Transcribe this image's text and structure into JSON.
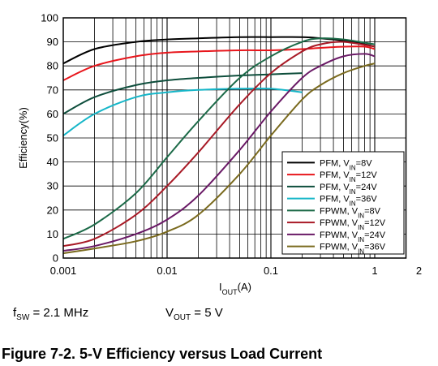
{
  "chart_data": {
    "type": "line",
    "title": "",
    "xlabel": "I_OUT(A)",
    "ylabel": "Efficiency(%)",
    "x_scale": "log",
    "xlim": [
      0.001,
      2
    ],
    "ylim": [
      0,
      100
    ],
    "grid": true,
    "legend_position": "bottom-right",
    "y_ticks": [
      "0",
      "10",
      "20",
      "30",
      "40",
      "50",
      "60",
      "70",
      "80",
      "90",
      "100"
    ],
    "x_ticks": [
      {
        "value": 0.001,
        "label": "0.001"
      },
      {
        "value": 0.01,
        "label": "0.01"
      },
      {
        "value": 0.1,
        "label": "0.1"
      },
      {
        "value": 1,
        "label": "1"
      },
      {
        "value": 2,
        "label": "2"
      }
    ],
    "series": [
      {
        "name": "PFM, V_IN=8V",
        "mode": "PFM",
        "vin": "8V",
        "color": "#000000",
        "x": [
          0.001,
          0.002,
          0.005,
          0.01,
          0.02,
          0.05,
          0.1,
          0.2,
          0.3,
          0.5,
          0.8,
          1
        ],
        "y": [
          81,
          87,
          90,
          91,
          91.5,
          92,
          92,
          92,
          91.5,
          90.5,
          89,
          88
        ]
      },
      {
        "name": "PFM, V_IN=12V",
        "mode": "PFM",
        "vin": "12V",
        "color": "#e8161c",
        "x": [
          0.001,
          0.002,
          0.005,
          0.01,
          0.02,
          0.05,
          0.1,
          0.2,
          0.3,
          0.5,
          0.8,
          1
        ],
        "y": [
          74,
          80,
          84,
          85.5,
          86,
          86.5,
          86.5,
          87,
          87.5,
          88,
          88,
          87
        ]
      },
      {
        "name": "PFM, V_IN=24V",
        "mode": "PFM",
        "vin": "24V",
        "color": "#0e4e3c",
        "x": [
          0.001,
          0.002,
          0.005,
          0.01,
          0.02,
          0.05,
          0.1,
          0.2
        ],
        "y": [
          60,
          67,
          72,
          74,
          75,
          76,
          76.5,
          77
        ]
      },
      {
        "name": "PFM, V_IN=36V",
        "mode": "PFM",
        "vin": "36V",
        "color": "#16b6c8",
        "x": [
          0.001,
          0.002,
          0.005,
          0.01,
          0.02,
          0.05,
          0.1,
          0.2
        ],
        "y": [
          51,
          60,
          67,
          69,
          70,
          70.5,
          70.5,
          69
        ]
      },
      {
        "name": "FPWM, V_IN=8V",
        "mode": "FPWM",
        "vin": "8V",
        "color": "#1c6a48",
        "x": [
          0.001,
          0.002,
          0.005,
          0.01,
          0.02,
          0.05,
          0.1,
          0.2,
          0.3,
          0.5,
          1
        ],
        "y": [
          8,
          14,
          27,
          42,
          57,
          75,
          84,
          90,
          91.5,
          91,
          89
        ]
      },
      {
        "name": "FPWM, V_IN=12V",
        "mode": "FPWM",
        "vin": "12V",
        "color": "#a81a26",
        "x": [
          0.001,
          0.002,
          0.005,
          0.01,
          0.02,
          0.05,
          0.1,
          0.2,
          0.3,
          0.5,
          1
        ],
        "y": [
          5,
          8,
          18,
          30,
          44,
          64,
          77,
          86,
          89,
          90,
          88
        ]
      },
      {
        "name": "FPWM, V_IN=24V",
        "mode": "FPWM",
        "vin": "24V",
        "color": "#6a1a66",
        "x": [
          0.001,
          0.002,
          0.005,
          0.01,
          0.02,
          0.05,
          0.1,
          0.2,
          0.3,
          0.5,
          0.8,
          1
        ],
        "y": [
          3,
          5,
          10,
          16,
          26,
          45,
          61,
          75,
          80,
          84,
          85,
          84
        ]
      },
      {
        "name": "FPWM, V_IN=36V",
        "mode": "FPWM",
        "vin": "36V",
        "color": "#7a6a1e",
        "x": [
          0.001,
          0.002,
          0.005,
          0.01,
          0.02,
          0.05,
          0.1,
          0.2,
          0.3,
          0.5,
          0.8,
          1
        ],
        "y": [
          2,
          4,
          7,
          11,
          18,
          35,
          51,
          66,
          72,
          77,
          80,
          81
        ]
      }
    ]
  },
  "conditions": {
    "fsw_label": "f",
    "fsw_sub": "SW",
    "fsw_value": " = 2.1 MHz",
    "vout_label": "V",
    "vout_sub": "OUT",
    "vout_value": " = 5 V"
  },
  "figure_title": "Figure 7-2. 5-V Efficiency versus Load Current"
}
